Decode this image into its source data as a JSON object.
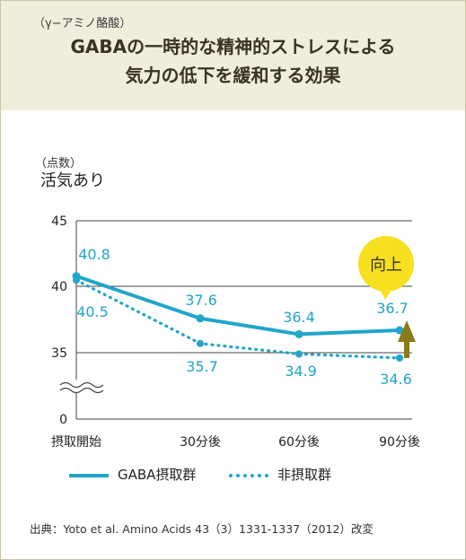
{
  "header": {
    "subtitle": "（γ−アミノ酪酸）",
    "title_line1": "GABAの一時的な精神的ストレスによる",
    "title_line2": "気力の低下を緩和する効果"
  },
  "colors": {
    "header_bg": "#efeddc",
    "gaba_series": "#1fa6c9",
    "non_series": "#1fa6c9",
    "label_text": "#1fa6c9",
    "badge": "#f6e020",
    "arrow": "#8a7a1a"
  },
  "chart_data": {
    "type": "line",
    "unit_label": "（点数）",
    "ylabel": "活気あり",
    "categories": [
      "摂取開始",
      "30分後",
      "60分後",
      "90分後"
    ],
    "yticks": [
      "45",
      "40",
      "35",
      "0"
    ],
    "axis_break": true,
    "ylim": [
      0,
      45
    ],
    "grid": true,
    "legend_position": "bottom",
    "series": [
      {
        "name": "GABA摂取群",
        "style": "solid",
        "values": [
          40.8,
          37.6,
          36.4,
          36.7
        ],
        "labels": [
          "40.8",
          "37.6",
          "36.4",
          "36.7"
        ]
      },
      {
        "name": "非摂取群",
        "style": "dotted",
        "values": [
          40.5,
          35.7,
          34.9,
          34.6
        ],
        "labels": [
          "40.5",
          "35.7",
          "34.9",
          "34.6"
        ]
      }
    ],
    "annotation": {
      "text": "向上",
      "icon": "up-arrow-icon"
    }
  },
  "source": "出典：Yoto et al.  Amino Acids 43（3）1331-1337（2012）改変"
}
